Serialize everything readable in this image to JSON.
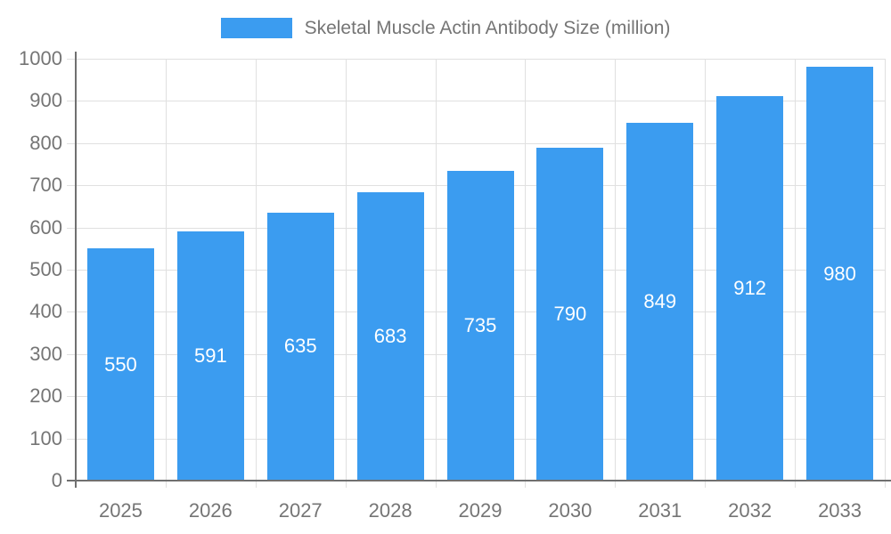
{
  "legend": {
    "label": "Skeletal Muscle Actin Antibody Size (million)"
  },
  "chart_data": {
    "type": "bar",
    "title": "Skeletal Muscle Actin Antibody Size (million)",
    "categories": [
      "2025",
      "2026",
      "2027",
      "2028",
      "2029",
      "2030",
      "2031",
      "2032",
      "2033"
    ],
    "series": [
      {
        "name": "Skeletal Muscle Actin Antibody Size (million)",
        "values": [
          550,
          591,
          635,
          683,
          735,
          790,
          849,
          912,
          980
        ]
      }
    ],
    "bar_labels_shown": [
      "550",
      "591",
      "635",
      "683",
      "735",
      "790",
      "849",
      "912",
      "980"
    ],
    "xlabel": "",
    "ylabel": "",
    "ylim": [
      0,
      1000
    ],
    "y_ticks": [
      0,
      100,
      200,
      300,
      400,
      500,
      600,
      700,
      800,
      900,
      1000
    ],
    "grid": true,
    "legend_position": "top-center",
    "bar_label_position": "inside-center",
    "colors": {
      "bar": "#3b9cf0",
      "bar_label": "#ffffff",
      "axis_line": "#707070",
      "grid_line": "#e0e0e0",
      "tick_label": "#757575"
    }
  }
}
